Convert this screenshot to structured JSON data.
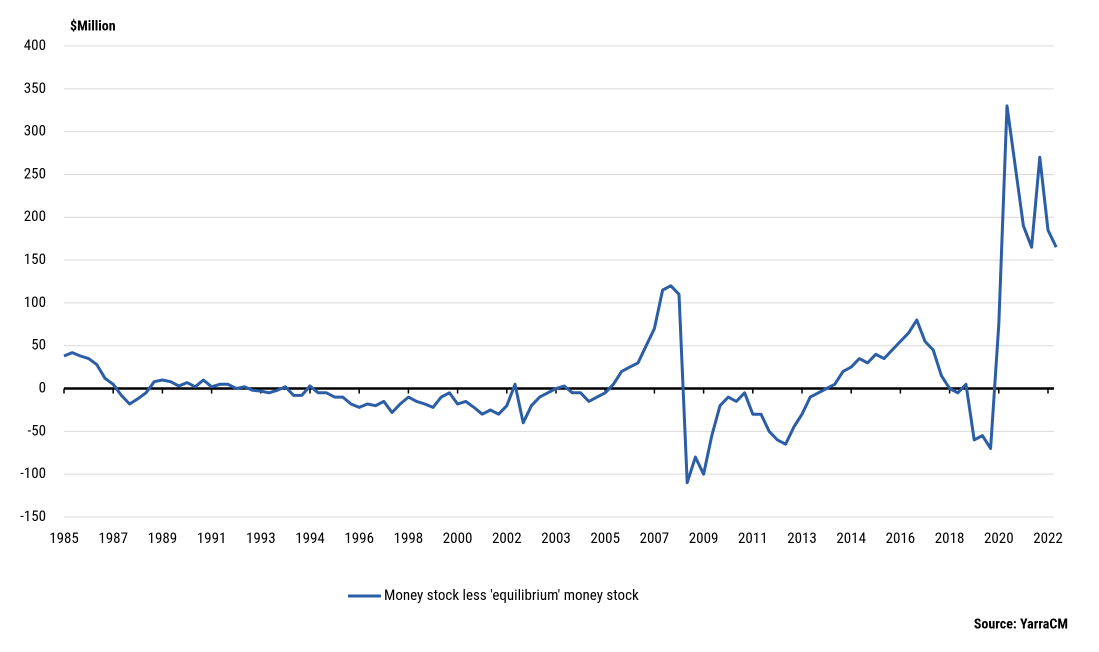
{
  "chart_data": {
    "type": "line",
    "y_label": "$Million",
    "source": "Source: YarraCM",
    "categories": [
      "1985",
      null,
      null,
      null,
      null,
      null,
      "1987",
      null,
      null,
      null,
      null,
      null,
      "1989",
      null,
      null,
      null,
      null,
      null,
      "1991",
      null,
      null,
      null,
      null,
      null,
      "1993",
      null,
      null,
      null,
      null,
      null,
      "1994",
      null,
      null,
      null,
      null,
      null,
      "1996",
      null,
      null,
      null,
      null,
      null,
      "1998",
      null,
      null,
      null,
      null,
      null,
      "2000",
      null,
      null,
      null,
      null,
      null,
      "2002",
      null,
      null,
      null,
      null,
      null,
      "2003",
      null,
      null,
      null,
      null,
      null,
      "2005",
      null,
      null,
      null,
      null,
      null,
      "2007",
      null,
      null,
      null,
      null,
      null,
      "2009",
      null,
      null,
      null,
      null,
      null,
      "2011",
      null,
      null,
      null,
      null,
      null,
      "2013",
      null,
      null,
      null,
      null,
      null,
      "2014",
      null,
      null,
      null,
      null,
      null,
      "2016",
      null,
      null,
      null,
      null,
      null,
      "2018",
      null,
      null,
      null,
      null,
      null,
      "2020",
      null,
      null,
      null,
      null,
      null,
      "2022",
      null
    ],
    "series": [
      {
        "name": "Money stock less 'equilibrium' money stock",
        "color": "#2b5ea7",
        "values": [
          38,
          42,
          38,
          35,
          28,
          12,
          5,
          -8,
          -18,
          -12,
          -5,
          8,
          10,
          8,
          3,
          7,
          2,
          10,
          2,
          5,
          5,
          0,
          2,
          -2,
          -3,
          -5,
          -2,
          2,
          -8,
          -8,
          3,
          -5,
          -5,
          -10,
          -10,
          -18,
          -22,
          -18,
          -20,
          -15,
          -28,
          -18,
          -10,
          -15,
          -18,
          -22,
          -10,
          -5,
          -18,
          -15,
          -22,
          -30,
          -25,
          -30,
          -20,
          5,
          -40,
          -20,
          -10,
          -5,
          0,
          3,
          -5,
          -5,
          -15,
          -10,
          -5,
          5,
          20,
          25,
          30,
          50,
          70,
          115,
          120,
          110,
          -110,
          -80,
          -100,
          -55,
          -20,
          -10,
          -15,
          -5,
          -30,
          -30,
          -50,
          -60,
          -65,
          -45,
          -30,
          -10,
          -5,
          0,
          5,
          20,
          25,
          35,
          30,
          40,
          35,
          45,
          55,
          65,
          80,
          55,
          45,
          15,
          0,
          -5,
          5,
          -60,
          -55,
          -70,
          75,
          330,
          260,
          190,
          165,
          270,
          185,
          165
        ]
      }
    ],
    "ylim": [
      -150,
      400
    ],
    "yticks": [
      -150,
      -100,
      -50,
      0,
      50,
      100,
      150,
      200,
      250,
      300,
      350,
      400
    ],
    "grid": true
  }
}
